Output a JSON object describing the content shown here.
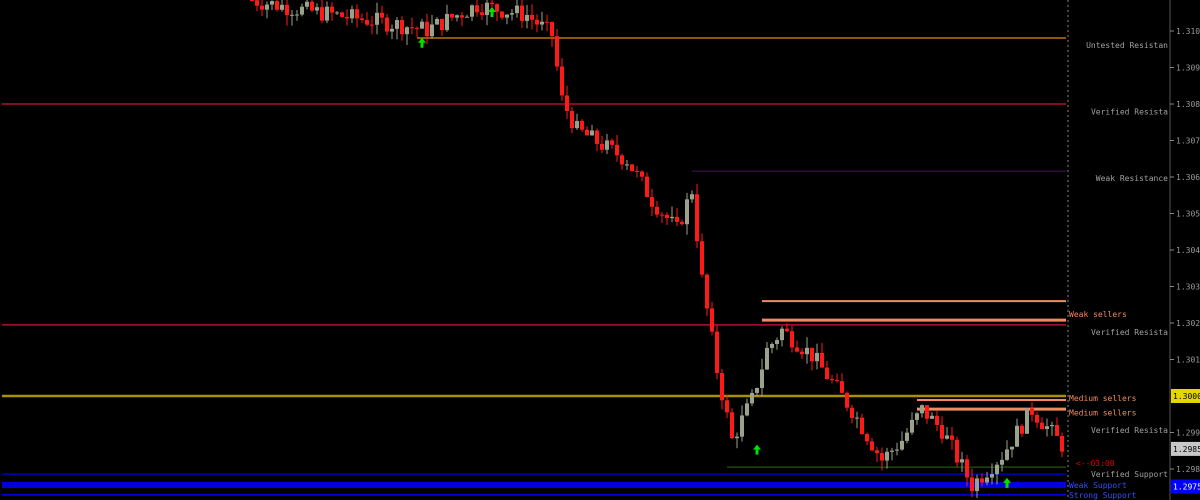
{
  "chart_data": {
    "type": "candlestick",
    "ylim": [
      1.29715,
      1.31085
    ],
    "grid": false,
    "colors": {
      "background": "#000000",
      "bull": "#9aa28c",
      "bear": "#ff1a1a",
      "axis_text": "#9a9a9a",
      "bid_highlight": "#e6d600"
    },
    "y_ticks": [
      "1.3100",
      "1.3090",
      "1.3080",
      "1.3070",
      "1.3060",
      "1.3050",
      "1.3040",
      "1.3030",
      "1.3020",
      "1.3010",
      "1.2990",
      "1.2980"
    ],
    "y_tick_values": [
      1.31,
      1.309,
      1.308,
      1.307,
      1.306,
      1.305,
      1.304,
      1.303,
      1.302,
      1.301,
      1.299,
      1.298
    ],
    "price_tags": [
      {
        "text": "1.3000",
        "value": 1.3,
        "bg": "#e6d600",
        "fg": "#000000"
      },
      {
        "text": "1.2985",
        "value": 1.29855,
        "bg": "#c8c8c8",
        "fg": "#000000"
      },
      {
        "text": "1.2975",
        "value": 1.29752,
        "bg": "#0000ff",
        "fg": "#ffffff"
      }
    ],
    "price_path": [
      [
        0,
        1.31085
      ],
      [
        10,
        1.31058
      ],
      [
        30,
        1.31016
      ],
      [
        35,
        1.31003
      ],
      [
        45,
        1.31071
      ],
      [
        55,
        1.31044
      ],
      [
        60,
        1.30989
      ],
      [
        62,
        1.30811
      ],
      [
        65,
        1.30729
      ],
      [
        75,
        1.30647
      ],
      [
        80,
        1.30537
      ],
      [
        85,
        1.30455
      ],
      [
        88,
        1.30564
      ],
      [
        90,
        1.30318
      ],
      [
        93,
        1.30071
      ],
      [
        96,
        1.29879
      ],
      [
        100,
        1.29989
      ],
      [
        103,
        1.30126
      ],
      [
        106,
        1.30181
      ],
      [
        112,
        1.30112
      ],
      [
        120,
        1.29962
      ],
      [
        126,
        1.29825
      ],
      [
        130,
        1.29879
      ],
      [
        134,
        1.29962
      ],
      [
        138,
        1.29907
      ],
      [
        144,
        1.29756
      ],
      [
        150,
        1.29838
      ],
      [
        156,
        1.29962
      ],
      [
        162,
        1.29866
      ]
    ],
    "levels": [
      {
        "value": 1.30981,
        "color": "#b8760a",
        "from": 33,
        "width": 1.5
      },
      {
        "value": 1.308,
        "color": "#b01035",
        "from": -50,
        "width": 1.5
      },
      {
        "value": 1.30616,
        "color": "#4a1060",
        "from": 88,
        "width": 1
      },
      {
        "value": 1.3026,
        "color": "#f08a60",
        "from": 102,
        "width": 2
      },
      {
        "value": 1.30208,
        "color": "#f08a60",
        "from": 102,
        "width": 3
      },
      {
        "value": 1.30195,
        "color": "#b01035",
        "from": -50,
        "width": 1.5
      },
      {
        "value": 1.3,
        "color": "#a89000",
        "from": -50,
        "width": 2.5
      },
      {
        "value": 1.29989,
        "color": "#f08a60",
        "from": 133,
        "width": 2
      },
      {
        "value": 1.29964,
        "color": "#f08a60",
        "from": 133,
        "width": 3
      },
      {
        "value": 1.29805,
        "color": "#2a6a10",
        "from": 95,
        "width": 1
      },
      {
        "value": 1.29786,
        "color": "#0000ff",
        "from": -50,
        "width": 1
      },
      {
        "value": 1.29756,
        "color": "#0000e0",
        "from": -50,
        "width": 6
      },
      {
        "value": 1.29729,
        "color": "#0000ff",
        "from": -50,
        "width": 1.5
      }
    ],
    "arrows": [
      [
        34,
        1.30968
      ],
      [
        48,
        1.31052
      ],
      [
        101,
        1.29853
      ],
      [
        151,
        1.29762
      ]
    ],
    "zone_labels": [
      {
        "text": "Untested Resistan",
        "value": 1.30962,
        "color": "#a0a0a0",
        "align": "right"
      },
      {
        "text": "Verified Resista",
        "value": 1.30779,
        "color": "#a0a0a0",
        "align": "right"
      },
      {
        "text": "Weak Resistance",
        "value": 1.30597,
        "color": "#a0a0a0",
        "align": "right"
      },
      {
        "text": "Weak sellers",
        "value": 1.30225,
        "color": "#f08a60",
        "align": "left"
      },
      {
        "text": "Verified Resista",
        "value": 1.30175,
        "color": "#a0a0a0",
        "align": "right"
      },
      {
        "text": "Medium sellers",
        "value": 1.29995,
        "color": "#f08a60",
        "align": "left"
      },
      {
        "text": "Medium sellers",
        "value": 1.29955,
        "color": "#f08a60",
        "align": "left"
      },
      {
        "text": "Verified Resista",
        "value": 1.2994,
        "color": "#a0a0a0",
        "align": "right"
      },
      {
        "text": "Verified Support",
        "value": 1.29763,
        "color": "#a0a0a0",
        "align": "right"
      },
      {
        "text": "Weak Support",
        "value": 1.2976,
        "color": "#3050ff",
        "align": "left"
      },
      {
        "text": "Strong Support",
        "value": 1.29718,
        "color": "#3050ff",
        "align": "left"
      }
    ],
    "countdown": "<--03:00"
  }
}
